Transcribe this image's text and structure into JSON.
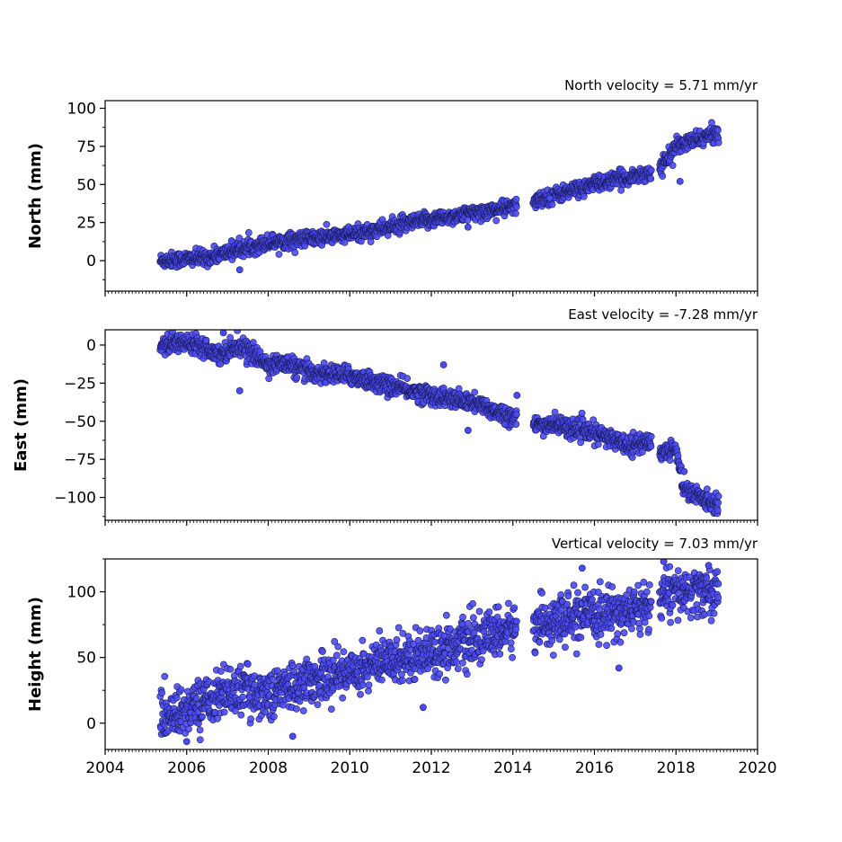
{
  "chart_data": {
    "type": "scatter",
    "marker_color": "#4b4bf5",
    "marker_edge_color": "#1a1a55",
    "x_shared": {
      "xlim": [
        2004,
        2020
      ],
      "ticks": [
        "2004",
        "2006",
        "2008",
        "2010",
        "2012",
        "2014",
        "2016",
        "2018",
        "2020"
      ],
      "data_span": [
        2005.35,
        2019.05
      ],
      "gaps": [
        [
          2014.1,
          2014.5
        ],
        [
          2017.4,
          2017.6
        ]
      ]
    },
    "panels": [
      {
        "id": "north",
        "title": "North velocity = 5.71 mm/yr",
        "ylabel": "North (mm)",
        "ylim": [
          -20,
          105
        ],
        "yticks": [
          "0",
          "25",
          "50",
          "75",
          "100"
        ],
        "trend_points": [
          [
            2005.35,
            0
          ],
          [
            2006.5,
            2
          ],
          [
            2008,
            12
          ],
          [
            2010,
            17
          ],
          [
            2012,
            27
          ],
          [
            2014,
            35
          ],
          [
            2014.5,
            39
          ],
          [
            2016,
            50
          ],
          [
            2017.4,
            58
          ],
          [
            2017.6,
            60
          ],
          [
            2018,
            75
          ],
          [
            2019.05,
            84
          ]
        ],
        "noise_mm": 2.5,
        "outliers": [
          [
            2007.1,
            13
          ],
          [
            2007.3,
            -6
          ],
          [
            2012.9,
            22
          ],
          [
            2014.9,
            41
          ],
          [
            2018.1,
            52
          ]
        ]
      },
      {
        "id": "east",
        "title": "East velocity = -7.28 mm/yr",
        "ylabel": "East (mm)",
        "ylim": [
          -115,
          10
        ],
        "yticks": [
          "0",
          "−25",
          "−50",
          "−75",
          "−100"
        ],
        "trend_points": [
          [
            2005.35,
            0
          ],
          [
            2006.2,
            2
          ],
          [
            2006.8,
            -6
          ],
          [
            2007.3,
            0
          ],
          [
            2008,
            -13
          ],
          [
            2008.4,
            -12
          ],
          [
            2009,
            -18
          ],
          [
            2010,
            -20
          ],
          [
            2011,
            -27
          ],
          [
            2012,
            -33
          ],
          [
            2013,
            -38
          ],
          [
            2014,
            -47
          ],
          [
            2014.5,
            -53
          ],
          [
            2015,
            -52
          ],
          [
            2016,
            -58
          ],
          [
            2016.8,
            -65
          ],
          [
            2017.4,
            -64
          ],
          [
            2017.6,
            -70
          ],
          [
            2018,
            -68
          ],
          [
            2018.2,
            -95
          ],
          [
            2019.05,
            -105
          ]
        ],
        "noise_mm": 3.0,
        "outliers": [
          [
            2007.3,
            -30
          ],
          [
            2012.3,
            -13
          ],
          [
            2012.9,
            -56
          ],
          [
            2013.8,
            -52
          ],
          [
            2014.1,
            -33
          ],
          [
            2006.9,
            8
          ],
          [
            2018.2,
            -83
          ]
        ]
      },
      {
        "id": "height",
        "title": "Vertical velocity = 7.03 mm/yr",
        "ylabel": "Height (mm)",
        "ylim": [
          -20,
          125
        ],
        "yticks": [
          "0",
          "50",
          "100"
        ],
        "trend_points": [
          [
            2005.35,
            5
          ],
          [
            2006,
            10
          ],
          [
            2007,
            25
          ],
          [
            2008,
            22
          ],
          [
            2009,
            32
          ],
          [
            2010,
            40
          ],
          [
            2011,
            48
          ],
          [
            2012,
            55
          ],
          [
            2013,
            62
          ],
          [
            2014,
            72
          ],
          [
            2014.5,
            75
          ],
          [
            2016,
            82
          ],
          [
            2017.4,
            88
          ],
          [
            2017.6,
            98
          ],
          [
            2019.05,
            100
          ]
        ],
        "noise_mm": 9,
        "outliers": [
          [
            2007.5,
            45
          ],
          [
            2008.6,
            -10
          ],
          [
            2006,
            -14
          ],
          [
            2011.8,
            12
          ],
          [
            2015.7,
            118
          ],
          [
            2016.6,
            42
          ],
          [
            2017.7,
            123
          ],
          [
            2018.8,
            120
          ]
        ]
      }
    ]
  }
}
